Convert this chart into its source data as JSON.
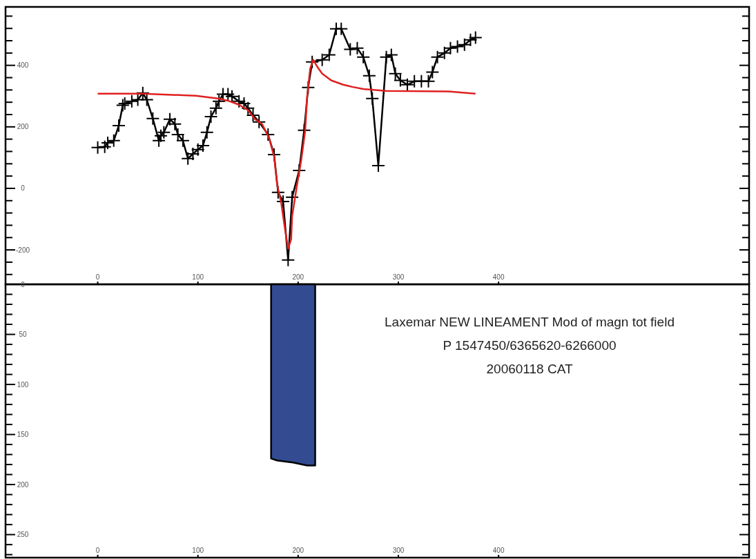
{
  "chart_data": [
    {
      "type": "line",
      "xlim": [
        -92,
        650
      ],
      "ylim": [
        -312,
        590
      ],
      "marker": "none",
      "xticks": [
        0,
        100,
        200,
        300,
        400
      ],
      "yticks": [
        {
          "value": -280,
          "label": null
        },
        {
          "value": -240,
          "label": null
        },
        -200,
        {
          "value": -160,
          "label": null
        },
        {
          "value": -120,
          "label": null
        },
        {
          "value": -80,
          "label": null
        },
        {
          "value": -40,
          "label": null
        },
        0,
        {
          "value": 40,
          "label": null
        },
        {
          "value": 80,
          "label": null
        },
        {
          "value": 120,
          "label": null
        },
        {
          "value": 160,
          "label": null
        },
        200,
        {
          "value": 240,
          "label": null
        },
        {
          "value": 280,
          "label": null
        },
        {
          "value": 320,
          "label": null
        },
        {
          "value": 360,
          "label": null
        },
        400,
        {
          "value": 440,
          "label": null
        },
        {
          "value": 480,
          "label": null
        },
        {
          "value": 520,
          "label": null
        },
        {
          "value": 560,
          "label": null
        }
      ],
      "series": [
        {
          "color": "#000000",
          "marker": "cross",
          "x": [
            0,
            7,
            10,
            16,
            21,
            25,
            27,
            34,
            40,
            45,
            49,
            55,
            61,
            63,
            66,
            72,
            77,
            80,
            85,
            90,
            95,
            100,
            105,
            109,
            113,
            118,
            121,
            125,
            130,
            134,
            141,
            146,
            150,
            155,
            161,
            170,
            176,
            180,
            185,
            190,
            194,
            201,
            206,
            210,
            214,
            224,
            231,
            238,
            243,
            252,
            259,
            265,
            271,
            274,
            280,
            288,
            293,
            297,
            302,
            309,
            316,
            323,
            330,
            334,
            339,
            346,
            352,
            359,
            366,
            372,
            377
          ],
          "values": [
            133,
            135,
            148,
            155,
            204,
            270,
            276,
            283,
            288,
            310,
            288,
            227,
            155,
            171,
            182,
            225,
            209,
            175,
            155,
            97,
            112,
            126,
            139,
            182,
            233,
            261,
            283,
            306,
            306,
            299,
            283,
            276,
            261,
            238,
            216,
            175,
            110,
            -13,
            -43,
            -233,
            -29,
            58,
            189,
            328,
            411,
            418,
            434,
            519,
            519,
            452,
            456,
            427,
            366,
            292,
            74,
            427,
            434,
            373,
            351,
            337,
            348,
            348,
            348,
            378,
            427,
            440,
            456,
            461,
            467,
            483,
            490
          ]
        },
        {
          "color": "#e02020",
          "x": [
            0,
            45,
            98,
            120,
            130,
            141,
            150,
            157,
            164,
            171,
            176,
            179,
            183,
            187,
            190,
            193,
            194,
            199,
            203,
            207,
            209,
            212,
            215,
            219,
            224,
            233,
            245,
            254,
            265,
            288,
            350,
            377
          ],
          "values": [
            308,
            308,
            301,
            292,
            285,
            272,
            254,
            225,
            209,
            164,
            103,
            13,
            -45,
            -135,
            -196,
            -166,
            -90,
            13,
            90,
            187,
            299,
            389,
            418,
            396,
            373,
            351,
            337,
            330,
            323,
            317,
            315,
            308
          ]
        }
      ]
    },
    {
      "type": "area",
      "xlim": [
        -92,
        650
      ],
      "ylim": [
        273,
        0
      ],
      "xticks": [
        0,
        100,
        200,
        300,
        400
      ],
      "yticks": [
        0,
        {
          "value": 10,
          "label": null
        },
        {
          "value": 20,
          "label": null
        },
        {
          "value": 30,
          "label": null
        },
        {
          "value": 40,
          "label": null
        },
        50,
        {
          "value": 60,
          "label": null
        },
        {
          "value": 70,
          "label": null
        },
        {
          "value": 80,
          "label": null
        },
        {
          "value": 90,
          "label": null
        },
        100,
        {
          "value": 110,
          "label": null
        },
        {
          "value": 120,
          "label": null
        },
        {
          "value": 130,
          "label": null
        },
        {
          "value": 140,
          "label": null
        },
        150,
        {
          "value": 160,
          "label": null
        },
        {
          "value": 170,
          "label": null
        },
        {
          "value": 180,
          "label": null
        },
        {
          "value": 190,
          "label": null
        },
        200,
        {
          "value": 210,
          "label": null
        },
        {
          "value": 220,
          "label": null
        },
        {
          "value": 230,
          "label": null
        },
        {
          "value": 240,
          "label": null
        },
        250,
        {
          "value": 260,
          "label": null
        },
        {
          "value": 270,
          "label": null
        }
      ],
      "series": [
        {
          "color": "#324b91",
          "x": [
            173,
            179,
            195,
            209,
            217
          ],
          "values": [
            174,
            176,
            178,
            181,
            181
          ]
        }
      ],
      "annotations": [
        "Laxemar NEW LINEAMENT Mod of magn tot field",
        "P 1547450/6365620-6266000",
        "20060118 CAT"
      ]
    }
  ]
}
